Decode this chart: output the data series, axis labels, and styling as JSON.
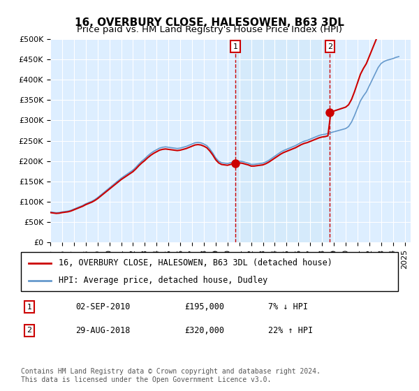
{
  "title": "16, OVERBURY CLOSE, HALESOWEN, B63 3DL",
  "subtitle": "Price paid vs. HM Land Registry's House Price Index (HPI)",
  "ylabel_ticks": [
    "£0",
    "£50K",
    "£100K",
    "£150K",
    "£200K",
    "£250K",
    "£300K",
    "£350K",
    "£400K",
    "£450K",
    "£500K"
  ],
  "ytick_values": [
    0,
    50000,
    100000,
    150000,
    200000,
    250000,
    300000,
    350000,
    400000,
    450000,
    500000
  ],
  "ylim": [
    0,
    500000
  ],
  "xlim_start": 1995.0,
  "xlim_end": 2025.5,
  "hpi_years": [
    1995.0,
    1995.25,
    1995.5,
    1995.75,
    1996.0,
    1996.25,
    1996.5,
    1996.75,
    1997.0,
    1997.25,
    1997.5,
    1997.75,
    1998.0,
    1998.25,
    1998.5,
    1998.75,
    1999.0,
    1999.25,
    1999.5,
    1999.75,
    2000.0,
    2000.25,
    2000.5,
    2000.75,
    2001.0,
    2001.25,
    2001.5,
    2001.75,
    2002.0,
    2002.25,
    2002.5,
    2002.75,
    2003.0,
    2003.25,
    2003.5,
    2003.75,
    2004.0,
    2004.25,
    2004.5,
    2004.75,
    2005.0,
    2005.25,
    2005.5,
    2005.75,
    2006.0,
    2006.25,
    2006.5,
    2006.75,
    2007.0,
    2007.25,
    2007.5,
    2007.75,
    2008.0,
    2008.25,
    2008.5,
    2008.75,
    2009.0,
    2009.25,
    2009.5,
    2009.75,
    2010.0,
    2010.25,
    2010.5,
    2010.75,
    2011.0,
    2011.25,
    2011.5,
    2011.75,
    2012.0,
    2012.25,
    2012.5,
    2012.75,
    2013.0,
    2013.25,
    2013.5,
    2013.75,
    2014.0,
    2014.25,
    2014.5,
    2014.75,
    2015.0,
    2015.25,
    2015.5,
    2015.75,
    2016.0,
    2016.25,
    2016.5,
    2016.75,
    2017.0,
    2017.25,
    2017.5,
    2017.75,
    2018.0,
    2018.25,
    2018.5,
    2018.75,
    2019.0,
    2019.25,
    2019.5,
    2019.75,
    2020.0,
    2020.25,
    2020.5,
    2020.75,
    2021.0,
    2021.25,
    2021.5,
    2021.75,
    2022.0,
    2022.25,
    2022.5,
    2022.75,
    2023.0,
    2023.25,
    2023.5,
    2023.75,
    2024.0,
    2024.25,
    2024.5
  ],
  "hpi_values": [
    75000,
    74000,
    73000,
    73500,
    75000,
    76000,
    77000,
    79000,
    82000,
    85000,
    88000,
    91000,
    95000,
    98000,
    101000,
    105000,
    110000,
    116000,
    122000,
    128000,
    134000,
    140000,
    146000,
    152000,
    158000,
    163000,
    168000,
    173000,
    178000,
    185000,
    193000,
    200000,
    206000,
    213000,
    219000,
    224000,
    228000,
    232000,
    234000,
    235000,
    234000,
    233000,
    232000,
    231000,
    232000,
    234000,
    236000,
    239000,
    242000,
    245000,
    246000,
    245000,
    242000,
    238000,
    230000,
    220000,
    208000,
    200000,
    196000,
    195000,
    194000,
    196000,
    198000,
    200000,
    200000,
    199000,
    197000,
    195000,
    192000,
    192000,
    193000,
    194000,
    195000,
    198000,
    202000,
    207000,
    212000,
    217000,
    222000,
    226000,
    229000,
    232000,
    235000,
    238000,
    242000,
    246000,
    249000,
    251000,
    254000,
    257000,
    260000,
    263000,
    265000,
    266000,
    268000,
    270000,
    272000,
    274000,
    276000,
    278000,
    280000,
    285000,
    296000,
    312000,
    330000,
    348000,
    360000,
    370000,
    385000,
    400000,
    415000,
    430000,
    440000,
    445000,
    448000,
    450000,
    452000,
    455000,
    457000
  ],
  "sale1_x": 2010.67,
  "sale1_y": 195000,
  "sale1_label": "1",
  "sale2_x": 2018.67,
  "sale2_y": 320000,
  "sale2_label": "2",
  "red_line_color": "#cc0000",
  "blue_line_color": "#6699cc",
  "sale_dot_color": "#cc0000",
  "marker_dashed_color": "#cc0000",
  "background_plot": "#ddeeff",
  "legend_line1": "16, OVERBURY CLOSE, HALESOWEN, B63 3DL (detached house)",
  "legend_line2": "HPI: Average price, detached house, Dudley",
  "table_row1_num": "1",
  "table_row1_date": "02-SEP-2010",
  "table_row1_price": "£195,000",
  "table_row1_hpi": "7% ↓ HPI",
  "table_row2_num": "2",
  "table_row2_date": "29-AUG-2018",
  "table_row2_price": "£320,000",
  "table_row2_hpi": "22% ↑ HPI",
  "footer": "Contains HM Land Registry data © Crown copyright and database right 2024.\nThis data is licensed under the Open Government Licence v3.0.",
  "title_fontsize": 11,
  "subtitle_fontsize": 9.5,
  "axis_fontsize": 8,
  "legend_fontsize": 8.5,
  "footer_fontsize": 7
}
